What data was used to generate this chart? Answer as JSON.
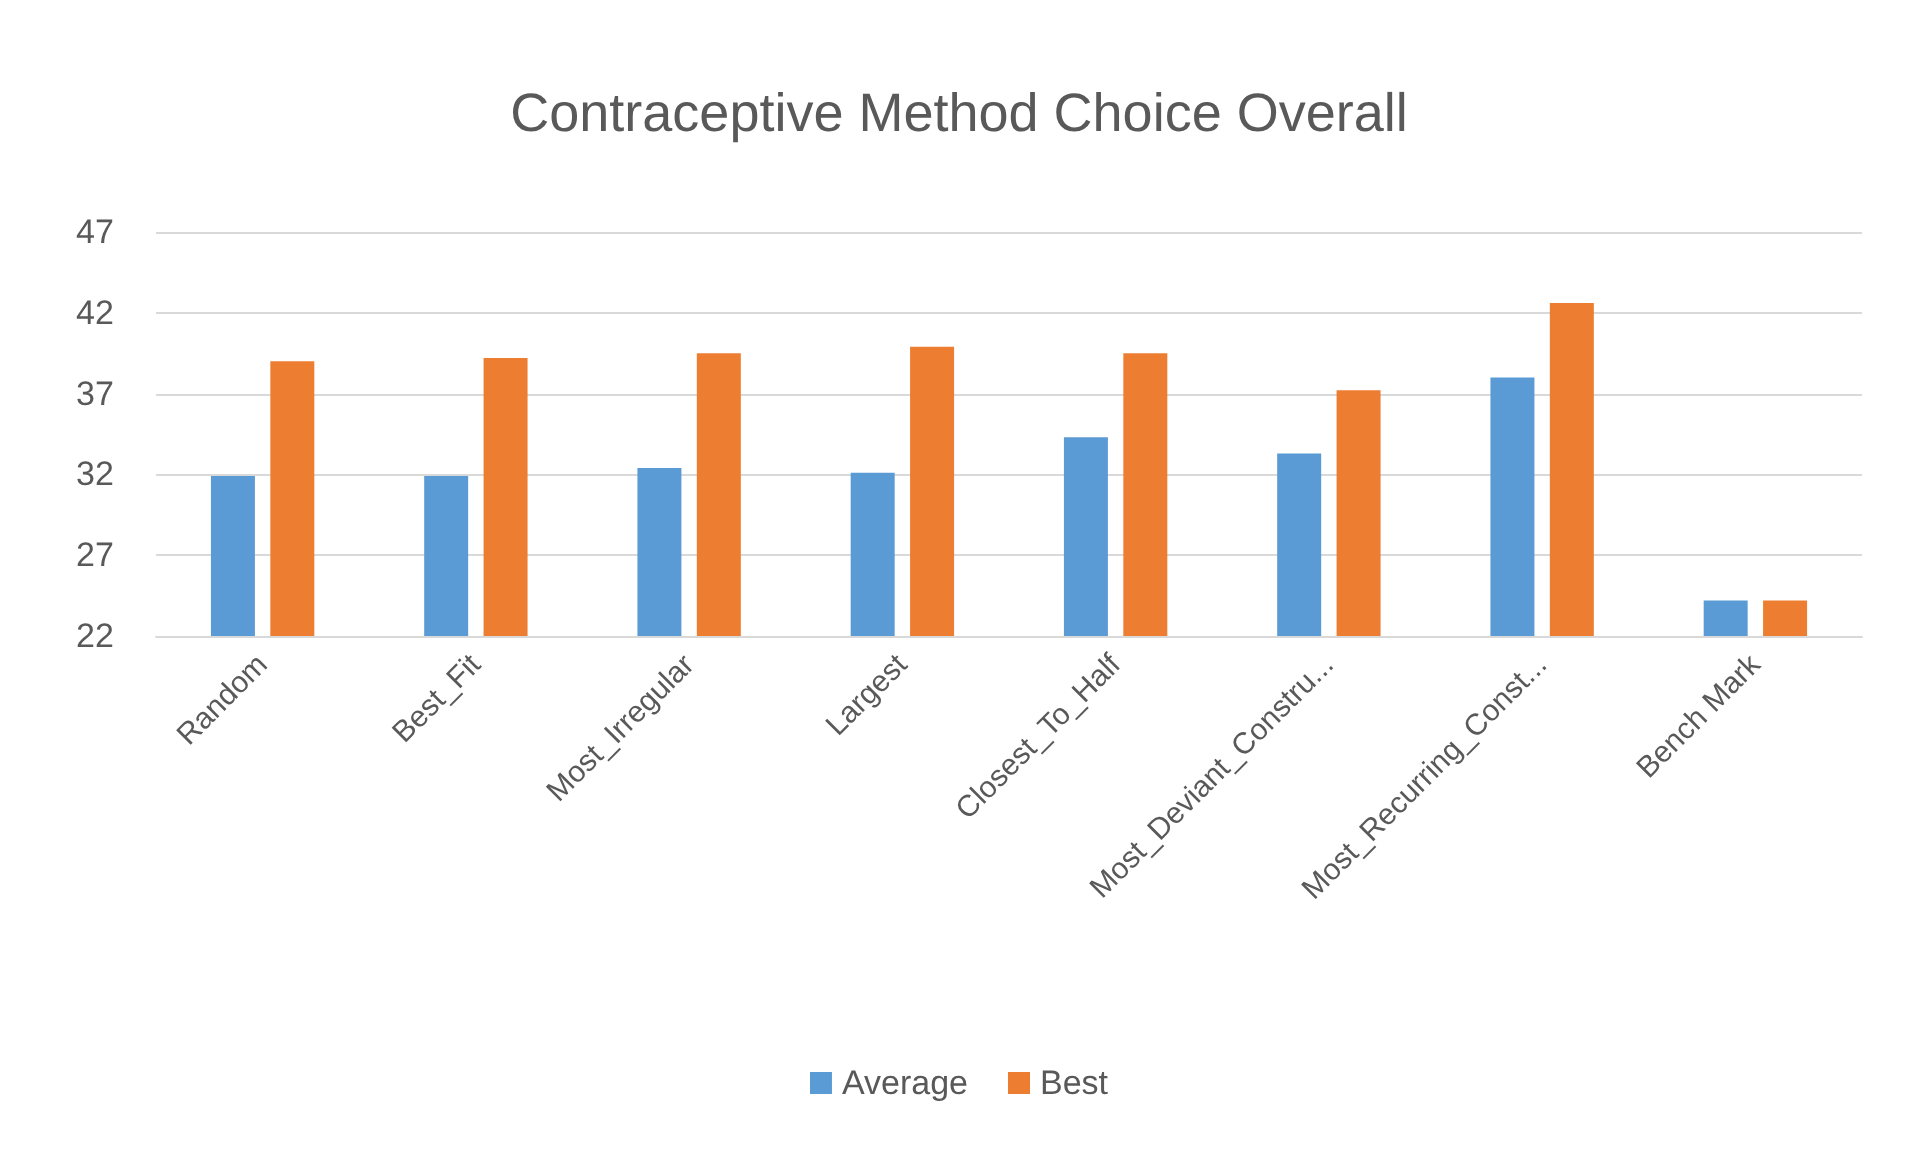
{
  "chart_data": {
    "type": "bar",
    "title": "Contraceptive Method Choice Overall",
    "categories": [
      "Random",
      "Best_Fit",
      "Most_Irregular",
      "Largest",
      "Closest_To_Half",
      "Most_Deviant_Constru...",
      "Most_Recurring_Const...",
      "Bench Mark"
    ],
    "series": [
      {
        "name": "Average",
        "color": "#5b9bd5",
        "values": [
          31.9,
          31.9,
          32.4,
          32.1,
          34.3,
          33.3,
          38.0,
          24.2
        ]
      },
      {
        "name": "Best",
        "color": "#ed7d31",
        "values": [
          39.0,
          39.2,
          39.5,
          39.9,
          39.5,
          37.2,
          42.6,
          24.2
        ]
      }
    ],
    "ylim": [
      22,
      47
    ],
    "yticks": [
      22,
      27,
      32,
      37,
      42,
      47
    ],
    "grid": "y",
    "legend": "bottom"
  }
}
